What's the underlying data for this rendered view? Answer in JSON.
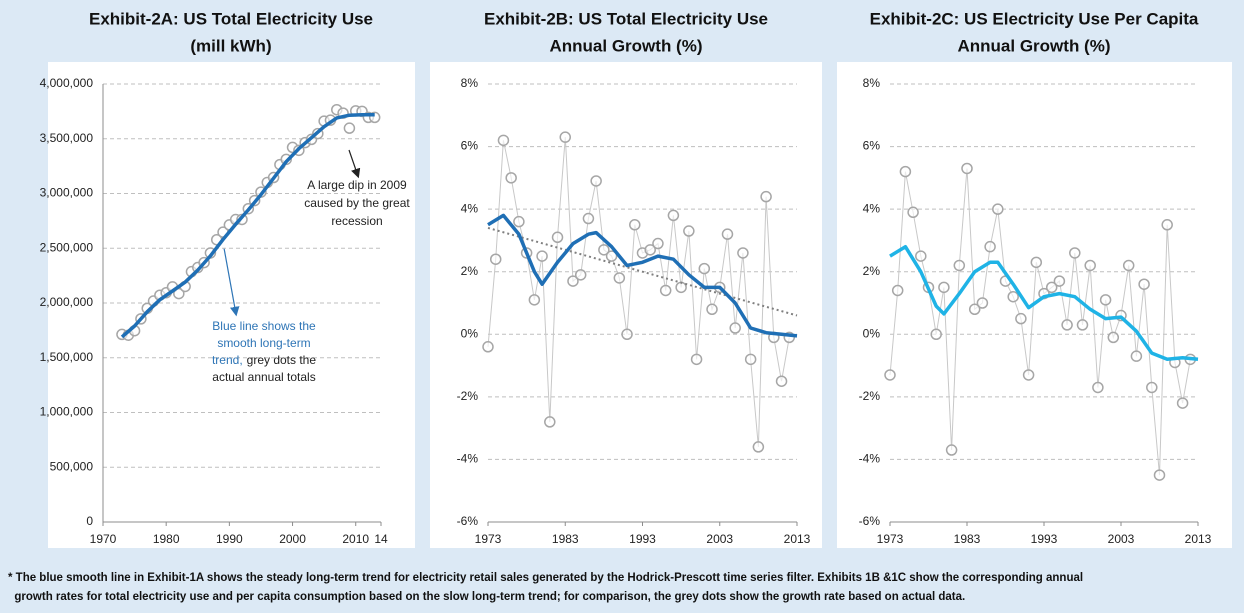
{
  "chart_data": [
    {
      "type": "line",
      "title": [
        "Exhibit-2A: US Total Electricity Use",
        "(mill kWh)"
      ],
      "xlim": [
        1970,
        2014
      ],
      "xticks": [
        1970,
        1980,
        1990,
        2000,
        2010,
        {
          "value": 2014,
          "label": "14"
        }
      ],
      "ylim": [
        0,
        4000000
      ],
      "yticks": [
        {
          "value": 0,
          "label": "0"
        },
        {
          "value": 500000,
          "label": "500,000"
        },
        {
          "value": 1000000,
          "label": "1,000,000"
        },
        {
          "value": 1500000,
          "label": "1,500,000"
        },
        {
          "value": 2000000,
          "label": "2,000,000"
        },
        {
          "value": 2500000,
          "label": "2,500,000"
        },
        {
          "value": 3000000,
          "label": "3,000,000"
        },
        {
          "value": 3500000,
          "label": "3,500,000"
        },
        {
          "value": 4000000,
          "label": "4,000,000"
        }
      ],
      "grid": true,
      "series": [
        {
          "style": "markers",
          "color": "#a6a6a6",
          "x": [
            1973,
            1974,
            1975,
            1976,
            1977,
            1978,
            1979,
            1980,
            1981,
            1982,
            1983,
            1984,
            1985,
            1986,
            1987,
            1988,
            1989,
            1990,
            1991,
            1992,
            1993,
            1994,
            1995,
            1996,
            1997,
            1998,
            1999,
            2000,
            2001,
            2002,
            2003,
            2004,
            2005,
            2006,
            2007,
            2008,
            2009,
            2010,
            2011,
            2012,
            2013
          ],
          "values": [
            1713000,
            1706000,
            1747000,
            1855000,
            1951000,
            2018000,
            2071000,
            2094000,
            2147000,
            2086000,
            2151000,
            2286000,
            2324000,
            2369000,
            2457000,
            2578000,
            2647000,
            2713000,
            2762000,
            2763000,
            2861000,
            2935000,
            3013000,
            3101000,
            3146000,
            3264000,
            3312000,
            3421000,
            3394000,
            3465000,
            3494000,
            3547000,
            3661000,
            3670000,
            3765000,
            3734000,
            3597000,
            3755000,
            3750000,
            3695000,
            3695000
          ]
        },
        {
          "style": "line",
          "color": "#1f6fb5",
          "x": [
            1973,
            1975,
            1977,
            1979,
            1981,
            1983,
            1985,
            1987,
            1989,
            1991,
            1993,
            1995,
            1997,
            1999,
            2001,
            2003,
            2005,
            2007,
            2009,
            2011,
            2013
          ],
          "values": [
            1690000,
            1790000,
            1920000,
            2030000,
            2110000,
            2190000,
            2300000,
            2430000,
            2580000,
            2720000,
            2850000,
            2990000,
            3140000,
            3290000,
            3410000,
            3510000,
            3610000,
            3690000,
            3715000,
            3720000,
            3720000
          ]
        }
      ],
      "annotations": [
        {
          "lines": [
            "A large dip in 2009",
            "caused by the great",
            "recession"
          ]
        },
        {
          "blue": [
            "Blue line shows the",
            "smooth long-term",
            "trend,"
          ],
          "dark": [
            "grey dots the",
            "actual annual totals"
          ]
        }
      ]
    },
    {
      "type": "line",
      "title": [
        "Exhibit-2B: US Total Electricity Use",
        "Annual Growth (%)"
      ],
      "xlim": [
        1973,
        2013
      ],
      "xticks": [
        1973,
        1983,
        1993,
        2003,
        2013
      ],
      "ylim": [
        -6,
        8
      ],
      "yticks": [
        {
          "value": -6,
          "label": "-6%"
        },
        {
          "value": -4,
          "label": "-4%"
        },
        {
          "value": -2,
          "label": "-2%"
        },
        {
          "value": 0,
          "label": "0%"
        },
        {
          "value": 2,
          "label": "2%"
        },
        {
          "value": 4,
          "label": "4%"
        },
        {
          "value": 6,
          "label": "6%"
        },
        {
          "value": 8,
          "label": "8%"
        }
      ],
      "grid": true,
      "series": [
        {
          "style": "line+markers",
          "color": "#a6a6a6",
          "x": [
            1973,
            1974,
            1975,
            1976,
            1977,
            1978,
            1979,
            1980,
            1981,
            1982,
            1983,
            1984,
            1985,
            1986,
            1987,
            1988,
            1989,
            1990,
            1991,
            1992,
            1993,
            1994,
            1995,
            1996,
            1997,
            1998,
            1999,
            2000,
            2001,
            2002,
            2003,
            2004,
            2005,
            2006,
            2007,
            2008,
            2009,
            2010,
            2011,
            2012
          ],
          "values": [
            -0.4,
            2.4,
            6.2,
            5.0,
            3.6,
            2.6,
            1.1,
            2.5,
            -2.8,
            3.1,
            6.3,
            1.7,
            1.9,
            3.7,
            4.9,
            2.7,
            2.5,
            1.8,
            0.0,
            3.5,
            2.6,
            2.7,
            2.9,
            1.4,
            3.8,
            1.5,
            3.3,
            -0.8,
            2.1,
            0.8,
            1.5,
            3.2,
            0.2,
            2.6,
            -0.8,
            -3.6,
            4.4,
            -0.1,
            -1.5,
            -0.1
          ]
        },
        {
          "style": "line",
          "color": "#1f6fb5",
          "x": [
            1973,
            1975,
            1977,
            1979,
            1980,
            1982,
            1984,
            1986,
            1987,
            1989,
            1991,
            1993,
            1995,
            1997,
            1999,
            2001,
            2003,
            2005,
            2007,
            2009,
            2011,
            2013
          ],
          "values": [
            3.5,
            3.8,
            3.2,
            2.0,
            1.6,
            2.3,
            2.9,
            3.2,
            3.25,
            2.8,
            2.2,
            2.3,
            2.5,
            2.4,
            1.9,
            1.5,
            1.5,
            1.0,
            0.2,
            0.05,
            0.0,
            -0.05
          ]
        },
        {
          "style": "dotted",
          "color": "#7f7f7f",
          "x": [
            1973,
            2013
          ],
          "values": [
            3.4,
            0.6
          ]
        }
      ]
    },
    {
      "type": "line",
      "title": [
        "Exhibit-2C: US Electricity Use Per Capita",
        "Annual Growth (%)"
      ],
      "xlim": [
        1973,
        2013
      ],
      "xticks": [
        1973,
        1983,
        1993,
        2003,
        2013
      ],
      "ylim": [
        -6,
        8
      ],
      "yticks": [
        {
          "value": -6,
          "label": "-6%"
        },
        {
          "value": -4,
          "label": "-4%"
        },
        {
          "value": -2,
          "label": "-2%"
        },
        {
          "value": 0,
          "label": "0%"
        },
        {
          "value": 2,
          "label": "2%"
        },
        {
          "value": 4,
          "label": "4%"
        },
        {
          "value": 6,
          "label": "6%"
        },
        {
          "value": 8,
          "label": "8%"
        }
      ],
      "grid": true,
      "series": [
        {
          "style": "line+markers",
          "color": "#a6a6a6",
          "x": [
            1973,
            1974,
            1975,
            1976,
            1977,
            1978,
            1979,
            1980,
            1981,
            1982,
            1983,
            1984,
            1985,
            1986,
            1987,
            1988,
            1989,
            1990,
            1991,
            1992,
            1993,
            1994,
            1995,
            1996,
            1997,
            1998,
            1999,
            2000,
            2001,
            2002,
            2003,
            2004,
            2005,
            2006,
            2007,
            2008,
            2009,
            2010,
            2011,
            2012
          ],
          "values": [
            -1.3,
            1.4,
            5.2,
            3.9,
            2.5,
            1.5,
            0.0,
            1.5,
            -3.7,
            2.2,
            5.3,
            0.8,
            1.0,
            2.8,
            4.0,
            1.7,
            1.2,
            0.5,
            -1.3,
            2.3,
            1.3,
            1.5,
            1.7,
            0.3,
            2.6,
            0.3,
            2.2,
            -1.7,
            1.1,
            -0.1,
            0.6,
            2.2,
            -0.7,
            1.6,
            -1.7,
            -4.5,
            3.5,
            -0.9,
            -2.2,
            -0.8
          ]
        },
        {
          "style": "line",
          "color": "#1fb3e6",
          "x": [
            1973,
            1975,
            1977,
            1979,
            1980,
            1982,
            1984,
            1986,
            1987,
            1989,
            1991,
            1993,
            1995,
            1997,
            1999,
            2001,
            2003,
            2005,
            2007,
            2009,
            2011,
            2013
          ],
          "values": [
            2.5,
            2.8,
            2.0,
            0.9,
            0.65,
            1.3,
            2.0,
            2.3,
            2.3,
            1.6,
            0.85,
            1.2,
            1.3,
            1.2,
            0.8,
            0.5,
            0.55,
            0.1,
            -0.6,
            -0.8,
            -0.75,
            -0.8
          ]
        }
      ]
    }
  ],
  "footnote": [
    "* The blue smooth line in Exhibit-1A shows the steady long-term trend for electricity retail sales generated by the Hodrick-Prescott time series filter. Exhibits 1B &1C show the corresponding annual",
    "  growth rates for total electricity use and per capita consumption based on the slow long-term trend; for comparison, the grey dots show the growth rate based on actual data."
  ]
}
